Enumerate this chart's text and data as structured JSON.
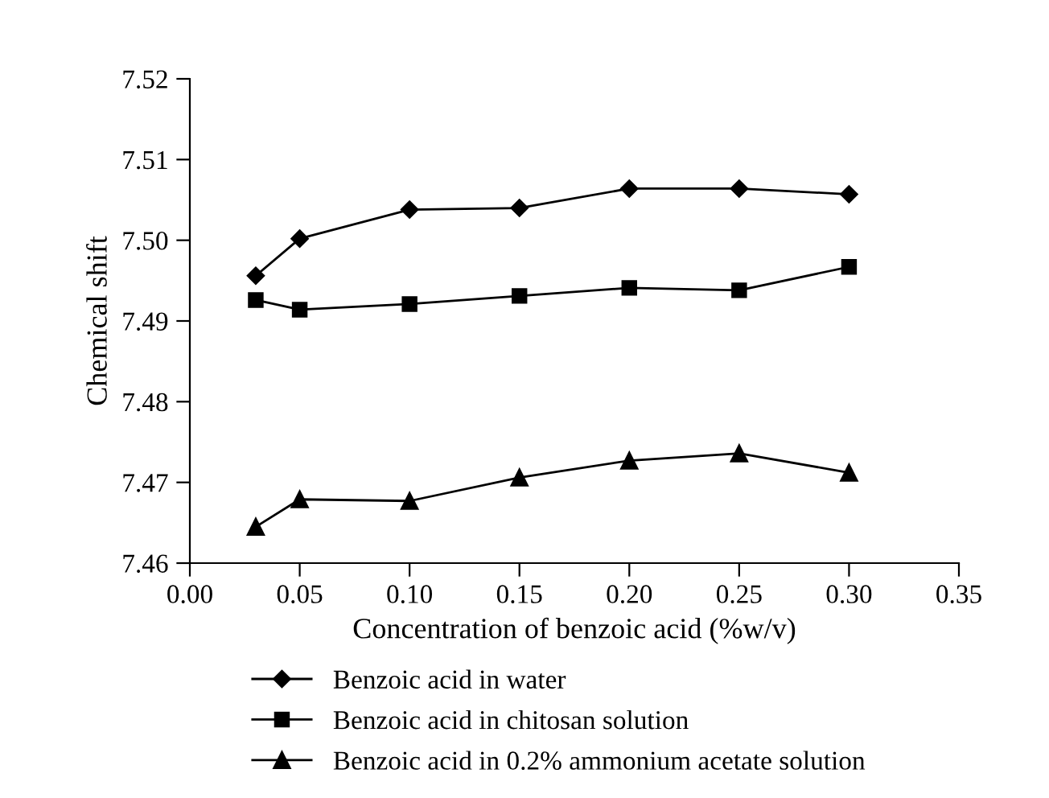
{
  "chart_data": {
    "type": "line",
    "xlabel": "Concentration of benzoic acid (%w/v)",
    "ylabel": "Chemical shift",
    "x": [
      0.03,
      0.05,
      0.1,
      0.15,
      0.2,
      0.25,
      0.3
    ],
    "series": [
      {
        "name": "Benzoic acid in water",
        "color": "#000000",
        "marker": "diamond",
        "values": [
          7.4956,
          7.5002,
          7.5038,
          7.504,
          7.5064,
          7.5064,
          7.5057
        ]
      },
      {
        "name": "Benzoic acid in chitosan solution",
        "color": "#000000",
        "marker": "square",
        "values": [
          7.4926,
          7.4914,
          7.4921,
          7.4931,
          7.4941,
          7.4938,
          7.4967
        ]
      },
      {
        "name": "Benzoic acid in 0.2% ammonium acetate solution",
        "color": "#000000",
        "marker": "triangle",
        "values": [
          7.4645,
          7.4679,
          7.4677,
          7.4706,
          7.4727,
          7.4736,
          7.4712
        ]
      }
    ],
    "xlim": [
      0,
      0.35
    ],
    "xticks": [
      {
        "value": 0,
        "label": "0.00"
      },
      {
        "value": 0.05,
        "label": "0.05"
      },
      {
        "value": 0.1,
        "label": "0.10"
      },
      {
        "value": 0.15,
        "label": "0.15"
      },
      {
        "value": 0.2,
        "label": "0.20"
      },
      {
        "value": 0.25,
        "label": "0.25"
      },
      {
        "value": 0.3,
        "label": "0.30"
      },
      {
        "value": 0.35,
        "label": "0.35"
      }
    ],
    "ylim": [
      7.46,
      7.52
    ],
    "yticks": [
      {
        "value": 7.46,
        "label": "7.46"
      },
      {
        "value": 7.47,
        "label": "7.47"
      },
      {
        "value": 7.48,
        "label": "7.48"
      },
      {
        "value": 7.49,
        "label": "7.49"
      },
      {
        "value": 7.5,
        "label": "7.50"
      },
      {
        "value": 7.51,
        "label": "7.51"
      },
      {
        "value": 7.52,
        "label": "7.52"
      }
    ],
    "grid": false,
    "legend": "bottom",
    "line_style": "solid"
  }
}
